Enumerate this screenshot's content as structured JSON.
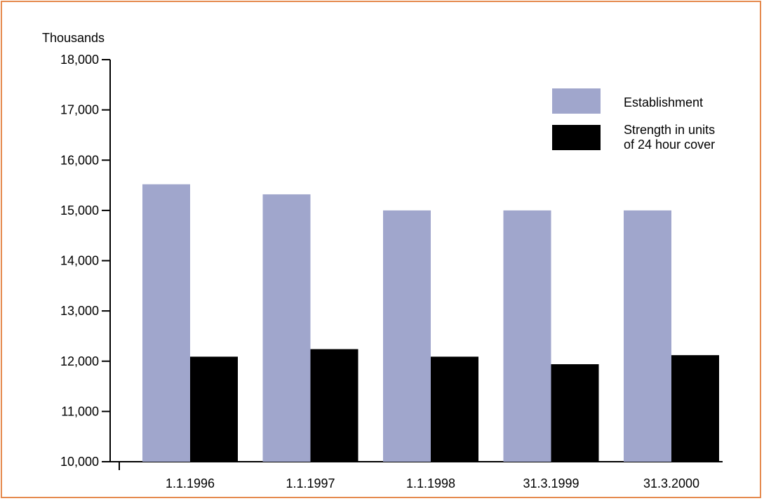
{
  "chart_data": {
    "type": "bar",
    "ylabel": "Thousands",
    "categories": [
      "1.1.1996",
      "1.1.1997",
      "1.1.1998",
      "31.3.1999",
      "31.3.2000"
    ],
    "yticks": [
      "10,000",
      "11,000",
      "12,000",
      "13,000",
      "14,000",
      "15,000",
      "16,000",
      "17,000",
      "18,000"
    ],
    "ylim": [
      10000,
      18000
    ],
    "grid": false,
    "legend_position": "top-right",
    "series": [
      {
        "name": "Establishment",
        "color": "#a0a6cc",
        "values": [
          15520,
          15320,
          15000,
          15000,
          15000
        ]
      },
      {
        "name": "Strength in units of 24 hour cover",
        "legend_lines": [
          "Strength in units",
          "of 24 hour cover"
        ],
        "color": "#000000",
        "values": [
          12090,
          12240,
          12090,
          11940,
          12120
        ]
      }
    ]
  },
  "colors": {
    "frame": "#e58a4e",
    "axis": "#000000"
  }
}
